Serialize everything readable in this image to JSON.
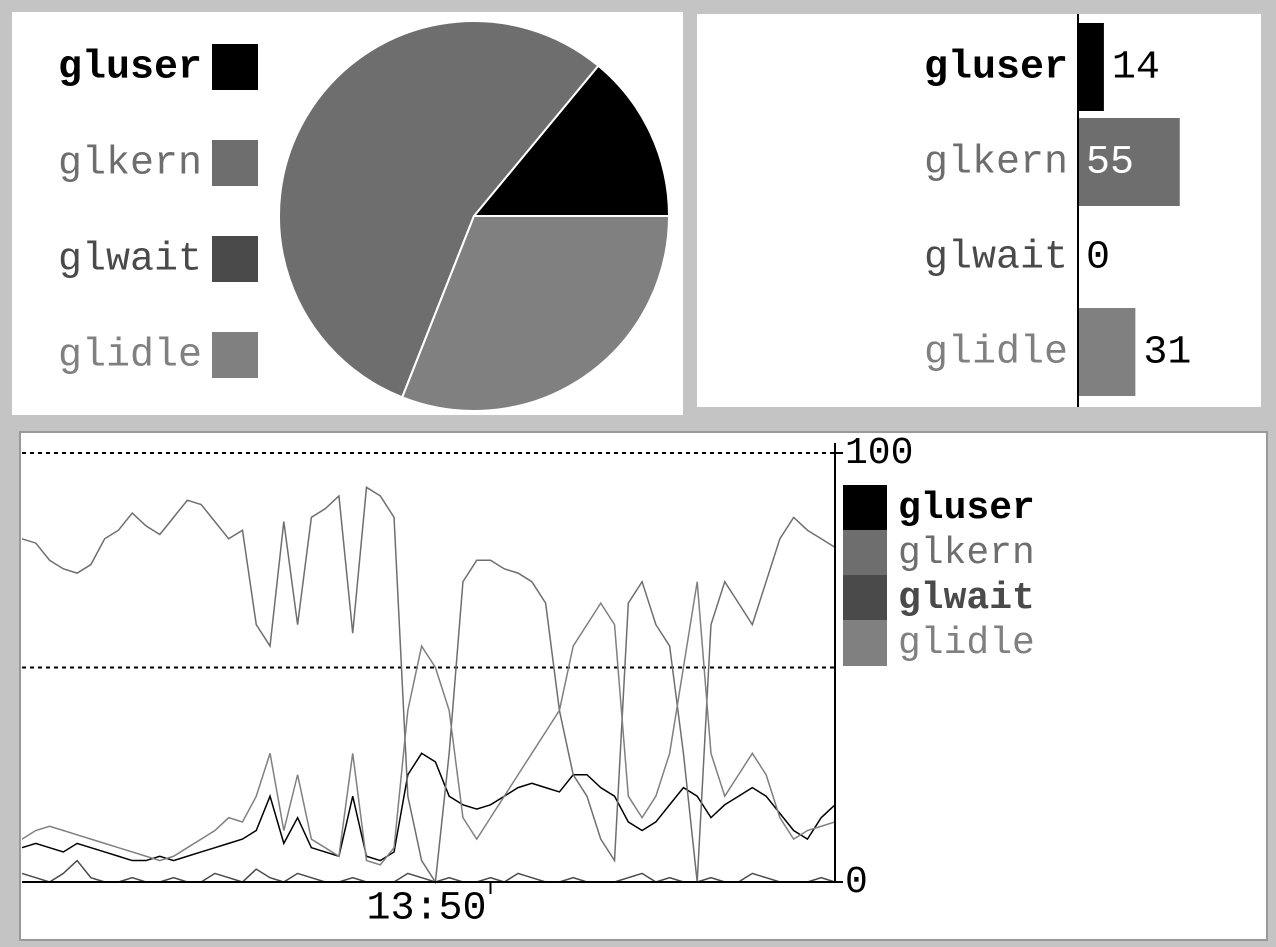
{
  "chart_data": [
    {
      "type": "pie",
      "categories": [
        "gluser",
        "glkern",
        "glwait",
        "glidle"
      ],
      "values": [
        14,
        55,
        0,
        31
      ],
      "colors": [
        "#000000",
        "#6e6e6e",
        "#4a4a4a",
        "#808080"
      ]
    },
    {
      "type": "hbar",
      "categories": [
        "gluser",
        "glkern",
        "glwait",
        "glidle"
      ],
      "values": [
        14,
        55,
        0,
        31
      ],
      "colors": [
        "#000000",
        "#6e6e6e",
        "#4a4a4a",
        "#808080"
      ]
    },
    {
      "type": "line",
      "categories": [
        null,
        null,
        null,
        null,
        null,
        null,
        null,
        null,
        null,
        null,
        null,
        null,
        null,
        null,
        null,
        null,
        null,
        null,
        null,
        null,
        null,
        null,
        null,
        null,
        null,
        null,
        null,
        null,
        null,
        null,
        null,
        null,
        null,
        null,
        "13:50",
        null,
        null,
        null,
        null,
        null,
        null,
        null,
        null,
        null,
        null,
        null,
        null,
        null,
        null,
        null,
        null,
        null,
        null,
        null,
        null,
        null,
        null,
        null,
        null,
        null
      ],
      "ylim": [
        0,
        100
      ],
      "yticks": [
        0,
        100
      ],
      "gridlines": [
        50,
        100
      ],
      "series": [
        {
          "name": "gluser",
          "color": "#000000",
          "values": [
            8,
            9,
            8,
            7,
            9,
            8,
            7,
            6,
            5,
            5,
            6,
            5,
            6,
            7,
            8,
            9,
            10,
            12,
            20,
            9,
            15,
            8,
            7,
            6,
            20,
            6,
            5,
            7,
            25,
            30,
            28,
            20,
            18,
            17,
            18,
            20,
            22,
            23,
            22,
            21,
            25,
            25,
            22,
            20,
            14,
            12,
            14,
            18,
            22,
            20,
            15,
            18,
            20,
            22,
            20,
            16,
            12,
            10,
            15,
            18
          ]
        },
        {
          "name": "glkern",
          "color": "#6e6e6e",
          "values": [
            80,
            79,
            75,
            73,
            72,
            74,
            80,
            82,
            86,
            83,
            81,
            85,
            89,
            88,
            84,
            80,
            82,
            60,
            55,
            84,
            60,
            85,
            87,
            90,
            58,
            92,
            90,
            85,
            20,
            5,
            0,
            30,
            70,
            75,
            75,
            73,
            72,
            70,
            65,
            40,
            25,
            20,
            10,
            5,
            65,
            70,
            60,
            55,
            30,
            0,
            60,
            70,
            65,
            60,
            70,
            80,
            85,
            82,
            80,
            78
          ]
        },
        {
          "name": "glwait",
          "color": "#4a4a4a",
          "values": [
            2,
            1,
            0,
            2,
            5,
            1,
            0,
            0,
            1,
            0,
            0,
            1,
            0,
            0,
            2,
            1,
            0,
            3,
            1,
            0,
            2,
            1,
            0,
            0,
            1,
            0,
            0,
            0,
            2,
            1,
            0,
            1,
            0,
            0,
            1,
            0,
            2,
            1,
            0,
            0,
            1,
            0,
            0,
            0,
            1,
            2,
            0,
            1,
            0,
            0,
            1,
            0,
            0,
            2,
            1,
            0,
            0,
            0,
            1,
            0
          ]
        },
        {
          "name": "glidle",
          "color": "#808080",
          "values": [
            10,
            12,
            13,
            12,
            11,
            10,
            9,
            8,
            7,
            6,
            5,
            6,
            8,
            10,
            12,
            15,
            14,
            20,
            30,
            12,
            25,
            10,
            8,
            6,
            30,
            5,
            4,
            8,
            40,
            55,
            50,
            40,
            15,
            10,
            15,
            20,
            25,
            30,
            35,
            40,
            55,
            60,
            65,
            60,
            20,
            15,
            20,
            30,
            50,
            70,
            30,
            20,
            25,
            30,
            25,
            15,
            10,
            12,
            13,
            14
          ]
        }
      ]
    }
  ]
}
